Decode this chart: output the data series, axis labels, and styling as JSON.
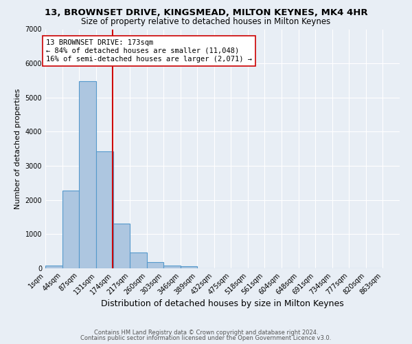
{
  "title1": "13, BROWNSET DRIVE, KINGSMEAD, MILTON KEYNES, MK4 4HR",
  "title2": "Size of property relative to detached houses in Milton Keynes",
  "xlabel": "Distribution of detached houses by size in Milton Keynes",
  "ylabel": "Number of detached properties",
  "footnote1": "Contains HM Land Registry data © Crown copyright and database right 2024.",
  "footnote2": "Contains public sector information licensed under the Open Government Licence v3.0.",
  "bin_labels": [
    "1sqm",
    "44sqm",
    "87sqm",
    "131sqm",
    "174sqm",
    "217sqm",
    "260sqm",
    "303sqm",
    "346sqm",
    "389sqm",
    "432sqm",
    "475sqm",
    "518sqm",
    "561sqm",
    "604sqm",
    "648sqm",
    "691sqm",
    "734sqm",
    "777sqm",
    "820sqm",
    "863sqm"
  ],
  "bar_values": [
    75,
    2270,
    5480,
    3420,
    1310,
    455,
    185,
    90,
    60,
    0,
    0,
    0,
    0,
    0,
    0,
    0,
    0,
    0,
    0,
    0
  ],
  "bin_edges": [
    1,
    44,
    87,
    131,
    174,
    217,
    260,
    303,
    346,
    389,
    432,
    475,
    518,
    561,
    604,
    648,
    691,
    734,
    777,
    820,
    863
  ],
  "bar_color": "#adc6e0",
  "bar_edge_color": "#5599cc",
  "property_size": 173,
  "vline_color": "#cc0000",
  "annotation_text": "13 BROWNSET DRIVE: 173sqm\n← 84% of detached houses are smaller (11,048)\n16% of semi-detached houses are larger (2,071) →",
  "annotation_box_color": "#ffffff",
  "annotation_box_edge_color": "#cc0000",
  "ylim": [
    0,
    7000
  ],
  "yticks": [
    0,
    1000,
    2000,
    3000,
    4000,
    5000,
    6000,
    7000
  ],
  "bg_color": "#e8eef5",
  "grid_color": "#ffffff",
  "title1_fontsize": 9.5,
  "title2_fontsize": 8.5,
  "xlabel_fontsize": 9,
  "ylabel_fontsize": 8,
  "tick_fontsize": 7,
  "annotation_fontsize": 7.5,
  "footnote_fontsize": 6
}
